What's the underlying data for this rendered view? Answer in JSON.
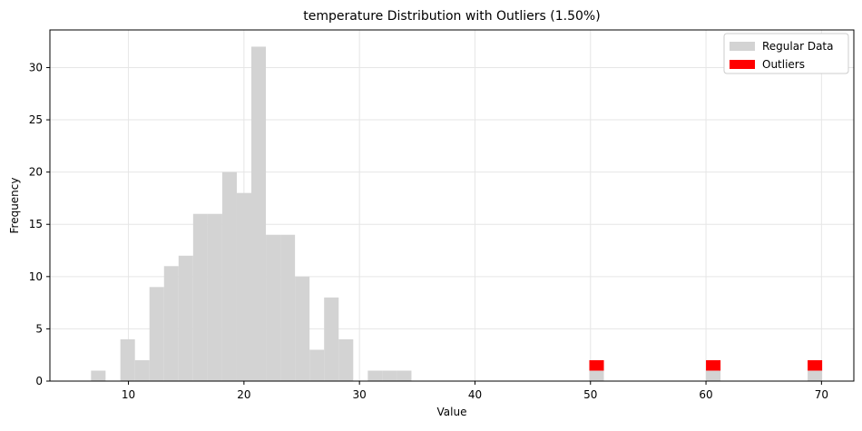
{
  "chart_data": {
    "type": "bar",
    "title": "temperature Distribution with Outliers (1.50%)",
    "xlabel": "Value",
    "ylabel": "Frequency",
    "xlim": [
      3.2,
      72.8
    ],
    "ylim": [
      0,
      33.6
    ],
    "xticks": [
      10,
      20,
      30,
      40,
      50,
      60,
      70
    ],
    "yticks": [
      0,
      5,
      10,
      15,
      20,
      25,
      30
    ],
    "grid": true,
    "legend_position": "top-right",
    "bin_width": 1.26,
    "series": [
      {
        "name": "Regular Data",
        "color": "#d3d3d3",
        "bins": [
          {
            "x0": 6.76,
            "count": 1
          },
          {
            "x0": 9.3,
            "count": 4
          },
          {
            "x0": 10.56,
            "count": 2
          },
          {
            "x0": 11.82,
            "count": 9
          },
          {
            "x0": 13.08,
            "count": 11
          },
          {
            "x0": 14.34,
            "count": 12
          },
          {
            "x0": 15.6,
            "count": 16
          },
          {
            "x0": 16.86,
            "count": 16
          },
          {
            "x0": 18.12,
            "count": 20
          },
          {
            "x0": 19.38,
            "count": 18
          },
          {
            "x0": 20.64,
            "count": 32
          },
          {
            "x0": 21.9,
            "count": 14
          },
          {
            "x0": 23.16,
            "count": 14
          },
          {
            "x0": 24.42,
            "count": 10
          },
          {
            "x0": 25.68,
            "count": 3
          },
          {
            "x0": 26.94,
            "count": 8
          },
          {
            "x0": 28.2,
            "count": 4
          },
          {
            "x0": 30.72,
            "count": 1
          },
          {
            "x0": 31.98,
            "count": 1
          },
          {
            "x0": 33.24,
            "count": 1
          },
          {
            "x0": 49.9,
            "count": 1
          },
          {
            "x0": 60.0,
            "count": 1
          },
          {
            "x0": 68.8,
            "count": 1
          }
        ]
      },
      {
        "name": "Outliers",
        "color": "#ff0000",
        "bins": [
          {
            "x0": 49.9,
            "count": 1,
            "bottom": 1
          },
          {
            "x0": 60.0,
            "count": 1,
            "bottom": 1
          },
          {
            "x0": 68.8,
            "count": 1,
            "bottom": 1
          }
        ]
      }
    ]
  }
}
